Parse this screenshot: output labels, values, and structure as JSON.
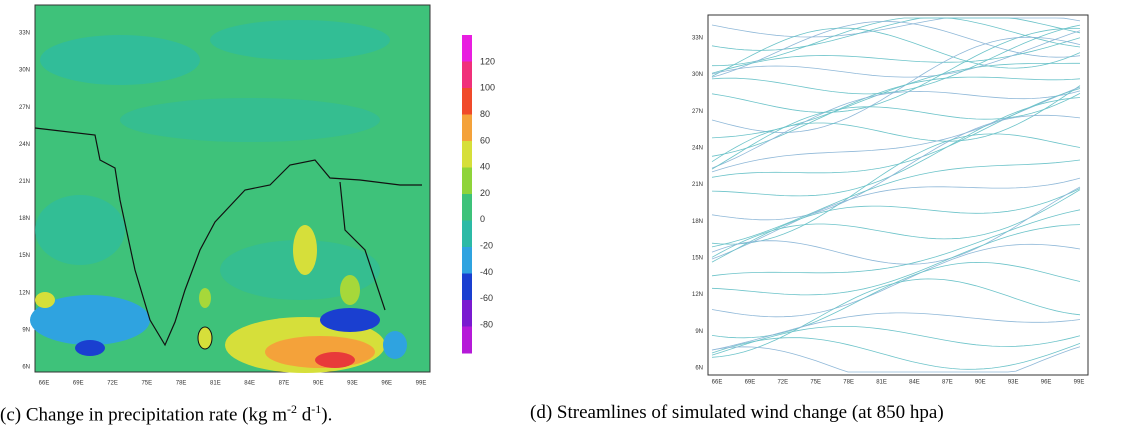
{
  "panels": [
    {
      "yticks": [
        "33N",
        "30N",
        "27N",
        "24N",
        "21N",
        "18N",
        "15N",
        "12N",
        "9N",
        "6N"
      ],
      "xticks": [
        "66E",
        "69E",
        "72E",
        "75E",
        "78E",
        "81E",
        "84E",
        "87E",
        "90E",
        "93E",
        "96E",
        "99E"
      ],
      "colorbar": [
        120,
        100,
        80,
        60,
        40,
        20,
        0,
        -20,
        -40,
        -60,
        -80
      ],
      "caption": [
        "(c) Change in precipitation rate (kg m",
        "-2",
        " d",
        "-1",
        ")."
      ]
    },
    {
      "yticks": [
        "33N",
        "30N",
        "27N",
        "24N",
        "21N",
        "18N",
        "15N",
        "12N",
        "9N",
        "6N"
      ],
      "xticks": [
        "66E",
        "69E",
        "72E",
        "75E",
        "78E",
        "81E",
        "84E",
        "87E",
        "90E",
        "93E",
        "96E",
        "99E"
      ],
      "caption": [
        "(d) Streamlines of simulated wind change (at 850 hpa)"
      ]
    }
  ]
}
